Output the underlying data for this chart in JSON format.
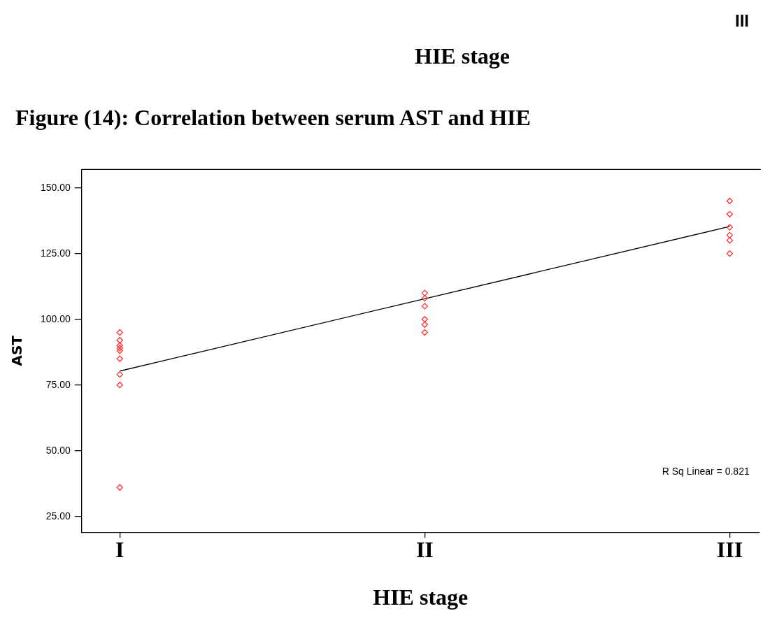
{
  "chart_data": {
    "type": "scatter",
    "title": "Figure (14): Correlation between serum AST and HIE",
    "xlabel": "HIE stage",
    "ylabel": "AST",
    "annotations": [
      "III",
      "HIE stage",
      "R Sq Linear = 0.821"
    ],
    "categories": [
      "I",
      "II",
      "III"
    ],
    "ylim": [
      19,
      157
    ],
    "yticks": [
      {
        "value": 25,
        "label": "25.00"
      },
      {
        "value": 50,
        "label": "50.00"
      },
      {
        "value": 75,
        "label": "75.00"
      },
      {
        "value": 100,
        "label": "100.00"
      },
      {
        "value": 125,
        "label": "125.00"
      },
      {
        "value": 150,
        "label": "150.00"
      }
    ],
    "grid": false,
    "legend": false,
    "series": [
      {
        "marker": "diamond",
        "color": "#ff3333",
        "x": [
          "I",
          "I",
          "I",
          "I",
          "I",
          "I",
          "I",
          "I",
          "I",
          "II",
          "II",
          "II",
          "II",
          "II",
          "II",
          "III",
          "III",
          "III",
          "III",
          "III",
          "III"
        ],
        "values": [
          95,
          92,
          90,
          89,
          88,
          85,
          79,
          75,
          36,
          110,
          108,
          105,
          100,
          98,
          95,
          145,
          140,
          135,
          132,
          130,
          125
        ]
      },
      {
        "type": "line",
        "marker": "none",
        "color": "#000000",
        "x": [
          "I",
          "III"
        ],
        "values": [
          80.3,
          135.3
        ]
      }
    ]
  }
}
